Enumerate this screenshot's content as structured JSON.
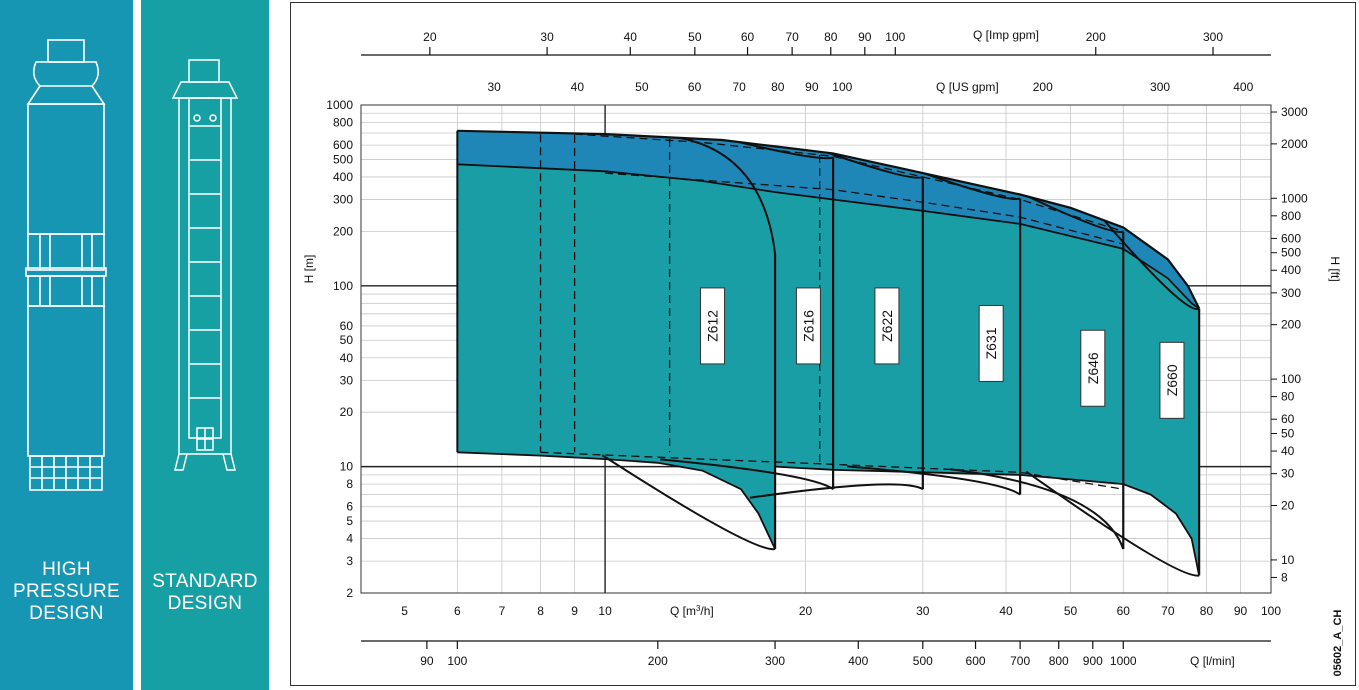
{
  "panels": {
    "high_pressure": {
      "lines": [
        "HIGH",
        "PRESSURE",
        "DESIGN"
      ],
      "color": "#1796b4"
    },
    "standard": {
      "lines": [
        "STANDARD",
        "DESIGN"
      ],
      "color": "#17a0a4"
    }
  },
  "chart_data": {
    "type": "area",
    "scale": "log-log",
    "grid": true,
    "drawing_code": "05602_A_CH",
    "fill_color": "#1a9ea6",
    "top_fill_color": "#1f87b8",
    "axes": {
      "x_bottom": {
        "label": "Q [m³/h]",
        "label_parts": [
          "Q [m",
          "3",
          "/h]"
        ],
        "range": [
          4.3,
          100
        ],
        "ticks": [
          5,
          6,
          7,
          8,
          9,
          10,
          20,
          30,
          40,
          50,
          60,
          70,
          80,
          90,
          100
        ]
      },
      "x_lmin": {
        "label": "Q [l/min]",
        "ticks": [
          90,
          100,
          200,
          300,
          400,
          500,
          600,
          700,
          800,
          900,
          1000
        ]
      },
      "x_usgpm": {
        "label": "Q [US gpm]",
        "ticks": [
          30,
          40,
          50,
          60,
          70,
          80,
          90,
          100,
          200,
          300,
          400
        ]
      },
      "x_impgpm": {
        "label": "Q [Imp gpm]",
        "ticks": [
          20,
          30,
          40,
          50,
          60,
          70,
          80,
          90,
          100,
          200,
          300
        ]
      },
      "y_left": {
        "label": "H [m]",
        "range": [
          2,
          1000
        ],
        "ticks": [
          2,
          3,
          4,
          5,
          6,
          8,
          10,
          20,
          30,
          40,
          50,
          60,
          100,
          200,
          300,
          400,
          500,
          600,
          800,
          1000
        ]
      },
      "y_right": {
        "label": "H [ft]",
        "ticks": [
          8,
          10,
          20,
          30,
          40,
          50,
          60,
          80,
          100,
          200,
          300,
          400,
          500,
          600,
          800,
          1000,
          2000,
          3000
        ]
      }
    },
    "series": [
      {
        "name": "Z612",
        "q_max": 18,
        "h_top_end": 150,
        "h_bottom_end": 3.5
      },
      {
        "name": "Z616",
        "q_max": 22,
        "h_top_end": 0,
        "h_bottom_end": 7.5
      },
      {
        "name": "Z622",
        "q_max": 30,
        "h_top_end": 0,
        "h_bottom_end": 7.5
      },
      {
        "name": "Z631",
        "q_max": 42,
        "h_top_end": 0,
        "h_bottom_end": 7
      },
      {
        "name": "Z646",
        "q_max": 60,
        "h_top_end": 0,
        "h_bottom_end": 3.5
      },
      {
        "name": "Z660",
        "q_max": 78,
        "h_top_end": 75,
        "h_bottom_end": 2.5
      }
    ],
    "envelope": {
      "q_min": 6,
      "upper": [
        [
          6,
          720
        ],
        [
          10,
          690
        ],
        [
          15,
          640
        ],
        [
          18,
          590
        ],
        [
          22,
          540
        ],
        [
          30,
          420
        ],
        [
          42,
          320
        ],
        [
          50,
          270
        ],
        [
          60,
          210
        ],
        [
          70,
          140
        ],
        [
          75,
          100
        ],
        [
          78,
          75
        ]
      ],
      "upper_inner": [
        [
          6,
          470
        ],
        [
          10,
          430
        ],
        [
          14,
          380
        ],
        [
          18,
          330
        ],
        [
          22,
          300
        ],
        [
          30,
          260
        ],
        [
          42,
          220
        ],
        [
          60,
          160
        ],
        [
          70,
          110
        ],
        [
          76,
          80
        ],
        [
          78,
          75
        ]
      ],
      "lower": [
        [
          6,
          12
        ],
        [
          8,
          11.5
        ],
        [
          10,
          11
        ],
        [
          12,
          10.5
        ],
        [
          14,
          9.5
        ],
        [
          16,
          7.5
        ],
        [
          17,
          5.5
        ],
        [
          18,
          3.5
        ]
      ],
      "lower_outer": [
        [
          18,
          10
        ],
        [
          22,
          9.6
        ],
        [
          30,
          9.3
        ],
        [
          42,
          9
        ],
        [
          50,
          8.5
        ],
        [
          60,
          8
        ],
        [
          66,
          7
        ],
        [
          72,
          5.5
        ],
        [
          76,
          4
        ],
        [
          78,
          2.5
        ]
      ]
    }
  }
}
